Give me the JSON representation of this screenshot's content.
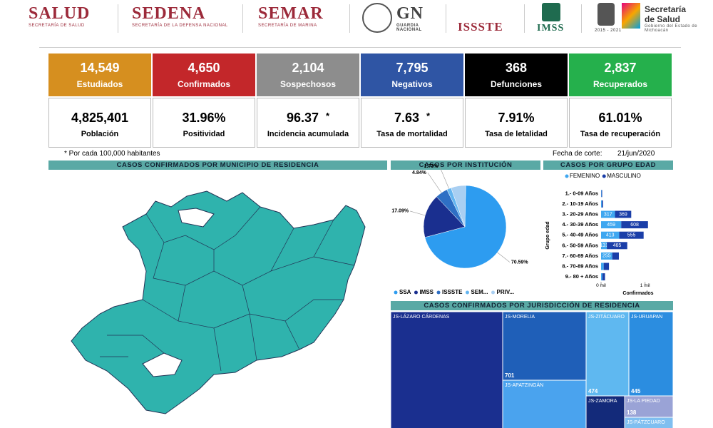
{
  "header": {
    "logos": [
      {
        "name": "SALUD",
        "subtitle": "SECRETARÍA DE SALUD"
      },
      {
        "name": "SEDENA",
        "subtitle": "SECRETARÍA DE LA DEFENSA NACIONAL"
      },
      {
        "name": "SEMAR",
        "subtitle": "SECRETARÍA DE MARINA"
      },
      {
        "name": "GN",
        "subtitle": "GUARDIA NACIONAL"
      },
      {
        "name": "ISSSTE"
      },
      {
        "name": "IMSS"
      },
      {
        "name": "2015 - 2021"
      },
      {
        "name": "Secretaría de Salud",
        "subtitle": "Gobierno del Estado de Michoacán"
      }
    ]
  },
  "kpis": {
    "top": [
      {
        "value": "14,549",
        "label": "Estudiados",
        "color": "#d68f1f"
      },
      {
        "value": "4,650",
        "label": "Confirmados",
        "color": "#c3272a"
      },
      {
        "value": "2,104",
        "label": "Sospechosos",
        "color": "#8d8d8d"
      },
      {
        "value": "7,795",
        "label": "Negativos",
        "color": "#2f55a4"
      },
      {
        "value": "368",
        "label": "Defunciones",
        "color": "#000000"
      },
      {
        "value": "2,837",
        "label": "Recuperados",
        "color": "#25b04c"
      }
    ],
    "bottom": [
      {
        "value": "4,825,401",
        "label": "Población"
      },
      {
        "value": "31.96%",
        "label": "Positividad"
      },
      {
        "value": "96.37",
        "mark": "*",
        "label": "Incidencia acumulada"
      },
      {
        "value": "7.63",
        "mark": "*",
        "label": "Tasa de mortalidad"
      },
      {
        "value": "7.91%",
        "label": "Tasa de letalidad"
      },
      {
        "value": "61.01%",
        "label": "Tasa de recuperación"
      }
    ]
  },
  "note": "* Por cada 100,000 habitantes",
  "cutoff": {
    "label": "Fecha de corte:",
    "date": "21/jun/2020"
  },
  "map": {
    "title": "CASOS CONFIRMADOS POR MUNICIPIO DE RESIDENCIA"
  },
  "chart_data": [
    {
      "type": "pie",
      "title": "CASOS POR INSTITUCIÓN",
      "categories": [
        "SSA",
        "IMSS",
        "ISSSTE",
        "SEM...",
        "PRIV..."
      ],
      "values": [
        70.59,
        17.09,
        4.84,
        1.73,
        5.75
      ],
      "value_labels": [
        "70.59%",
        "17.09%",
        "4.84%",
        "1.73%",
        null
      ],
      "colors": [
        "#2d9cf0",
        "#1a2f8f",
        "#2e6fc4",
        "#64b5f0",
        "#a9cff2"
      ]
    },
    {
      "type": "bar",
      "orientation": "horizontal",
      "stacked": true,
      "title": "CASOS POR GRUPO EDAD",
      "categories": [
        "1.- 0-09 Años",
        "2.- 10-19 Años",
        "3.- 20-29 Años",
        "4.- 30-39 Años",
        "5.- 40-49 Años",
        "6.- 50-59 Años",
        "7.- 60-69 Años",
        "8.- 70-89 Años",
        "9.- 80 + Años"
      ],
      "series": [
        {
          "name": "FEMENINO",
          "color": "#3fa7f0",
          "values": [
            10,
            20,
            317,
            459,
            413,
            131,
            255,
            60,
            30
          ],
          "value_labels": [
            null,
            null,
            "317",
            "459",
            "413",
            "131",
            "255",
            null,
            null
          ]
        },
        {
          "name": "MASCULINO",
          "color": "#1a3ea8",
          "values": [
            15,
            25,
            369,
            608,
            555,
            465,
            150,
            120,
            60
          ],
          "value_labels": [
            null,
            null,
            "369",
            "608",
            "555",
            "465",
            null,
            null,
            null
          ]
        }
      ],
      "xlim": [
        0,
        1200
      ],
      "xticks": [
        {
          "value": 0,
          "label": "0 mil"
        },
        {
          "value": 1000,
          "label": "1 mil"
        }
      ],
      "xlabel": "Confirmados",
      "ylabel": "Grupo edad"
    },
    {
      "type": "treemap",
      "title": "CASOS CONFIRMADOS POR JURISDICCIÓN DE RESIDENCIA",
      "categories": [
        "JS-LÁZARO CÁRDENAS",
        "JS-MORELIA",
        "JS-APATZINGÁN",
        "JS-ZITÁCUARO",
        "JS-URUAPAN",
        "JS-ZAMORA",
        "JS-LA PIEDAD",
        "JS-PÁTZCUARO"
      ],
      "values": [
        1600,
        701,
        490,
        474,
        445,
        150,
        138,
        100
      ],
      "value_labels": [
        null,
        "701",
        null,
        "474",
        "445",
        null,
        "138",
        null
      ],
      "colors": [
        "#1a2f8f",
        "#1f5fb8",
        "#4aa3ee",
        "#5fb8f0",
        "#2b8de0",
        "#132a7a",
        "#9aa3d6",
        "#7fbff0"
      ]
    }
  ]
}
